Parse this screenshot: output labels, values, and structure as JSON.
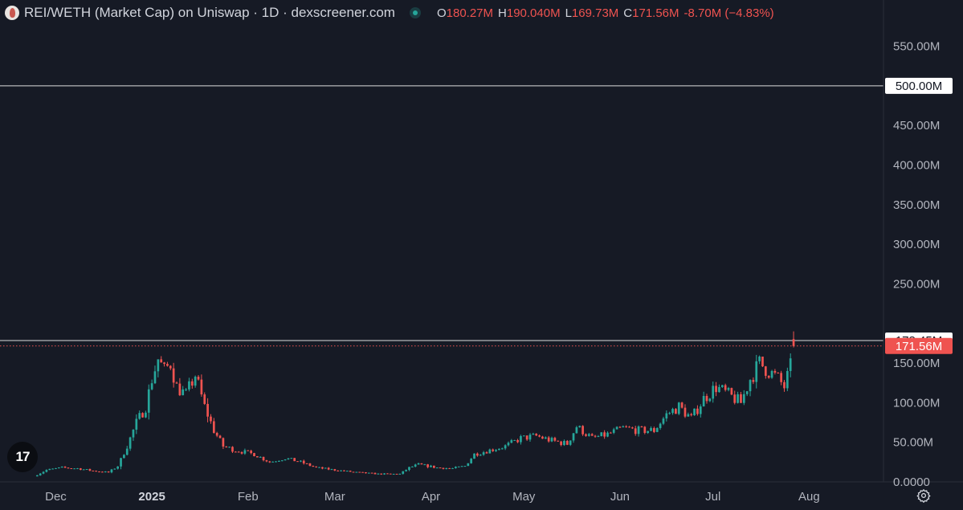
{
  "header": {
    "title": "REI/WETH (Market Cap) on Uniswap · 1D · dexscreener.com",
    "ohlc": [
      {
        "key": "O",
        "value": "180.27M"
      },
      {
        "key": "H",
        "value": "190.040M"
      },
      {
        "key": "L",
        "value": "169.73M"
      },
      {
        "key": "C",
        "value": "171.56M"
      },
      {
        "key": "",
        "value": "-8.70M (−4.83%)"
      }
    ]
  },
  "colors": {
    "up": "#26a69a",
    "down": "#ef5350",
    "background": "#161a25",
    "text": "#d1d4dc"
  },
  "icons": {
    "tv_logo": "tradingview-logo-icon",
    "settings": "gear-icon",
    "live": "live-status-dot-icon"
  },
  "tv_logo_text": "17",
  "chart_data": {
    "type": "candlestick",
    "title": "REI/WETH (Market Cap) on Uniswap · 1D · dexscreener.com",
    "unit": "USD",
    "y_range": [
      0,
      580000000
    ],
    "y_ticks": [
      {
        "value": 0,
        "label": "0.0000"
      },
      {
        "value": 50000000,
        "label": "50.00M"
      },
      {
        "value": 100000000,
        "label": "100.00M"
      },
      {
        "value": 150000000,
        "label": "150.00M"
      },
      {
        "value": 250000000,
        "label": "250.00M"
      },
      {
        "value": 300000000,
        "label": "300.00M"
      },
      {
        "value": 350000000,
        "label": "350.00M"
      },
      {
        "value": 400000000,
        "label": "400.00M"
      },
      {
        "value": 450000000,
        "label": "450.00M"
      },
      {
        "value": 550000000,
        "label": "550.00M"
      }
    ],
    "x_ticks": [
      {
        "date": "2024-12-01",
        "label": "Dec",
        "bold": false
      },
      {
        "date": "2025-01-01",
        "label": "2025",
        "bold": true
      },
      {
        "date": "2025-02-01",
        "label": "Feb",
        "bold": false
      },
      {
        "date": "2025-03-01",
        "label": "Mar",
        "bold": false
      },
      {
        "date": "2025-04-01",
        "label": "Apr",
        "bold": false
      },
      {
        "date": "2025-05-01",
        "label": "May",
        "bold": false
      },
      {
        "date": "2025-06-01",
        "label": "Jun",
        "bold": false
      },
      {
        "date": "2025-07-01",
        "label": "Jul",
        "bold": false
      },
      {
        "date": "2025-08-01",
        "label": "Aug",
        "bold": false
      }
    ],
    "x_range": [
      "2024-11-13",
      "2025-08-25"
    ],
    "horizontal_lines": [
      {
        "value": 500000000,
        "label": "500.00M",
        "style": "solid",
        "color": "#ffffff"
      },
      {
        "value": 178450000,
        "label": "178.45M",
        "style": "solid",
        "color": "#ffffff"
      },
      {
        "value": 171560000,
        "label": "171.56M",
        "style": "dotted",
        "color": "#ef5350"
      }
    ],
    "last_candle": {
      "open": 180270000,
      "high": 190040000,
      "low": 169730000,
      "close": 171560000,
      "change": -8700000,
      "change_pct": -4.83
    },
    "close_path": [
      [
        "2024-11-24",
        7000000
      ],
      [
        "2024-11-28",
        15000000
      ],
      [
        "2024-12-03",
        18000000
      ],
      [
        "2024-12-08",
        17000000
      ],
      [
        "2024-12-13",
        14000000
      ],
      [
        "2024-12-18",
        12000000
      ],
      [
        "2024-12-21",
        20000000
      ],
      [
        "2024-12-24",
        45000000
      ],
      [
        "2024-12-27",
        75000000
      ],
      [
        "2024-12-30",
        95000000
      ],
      [
        "2025-01-01",
        130000000
      ],
      [
        "2025-01-03",
        155000000
      ],
      [
        "2025-01-05",
        140000000
      ],
      [
        "2025-01-07",
        150000000
      ],
      [
        "2025-01-09",
        120000000
      ],
      [
        "2025-01-12",
        110000000
      ],
      [
        "2025-01-15",
        135000000
      ],
      [
        "2025-01-18",
        95000000
      ],
      [
        "2025-01-21",
        65000000
      ],
      [
        "2025-01-24",
        45000000
      ],
      [
        "2025-01-28",
        40000000
      ],
      [
        "2025-02-03",
        35000000
      ],
      [
        "2025-02-08",
        25000000
      ],
      [
        "2025-02-13",
        30000000
      ],
      [
        "2025-02-18",
        25000000
      ],
      [
        "2025-02-23",
        18000000
      ],
      [
        "2025-03-01",
        15000000
      ],
      [
        "2025-03-08",
        12000000
      ],
      [
        "2025-03-15",
        10000000
      ],
      [
        "2025-03-22",
        10000000
      ],
      [
        "2025-03-25",
        18000000
      ],
      [
        "2025-03-28",
        22000000
      ],
      [
        "2025-04-03",
        18000000
      ],
      [
        "2025-04-08",
        17000000
      ],
      [
        "2025-04-12",
        20000000
      ],
      [
        "2025-04-15",
        35000000
      ],
      [
        "2025-04-20",
        40000000
      ],
      [
        "2025-04-25",
        45000000
      ],
      [
        "2025-04-30",
        55000000
      ],
      [
        "2025-05-05",
        58000000
      ],
      [
        "2025-05-10",
        52000000
      ],
      [
        "2025-05-15",
        48000000
      ],
      [
        "2025-05-18",
        70000000
      ],
      [
        "2025-05-23",
        55000000
      ],
      [
        "2025-05-28",
        60000000
      ],
      [
        "2025-06-02",
        68000000
      ],
      [
        "2025-06-07",
        65000000
      ],
      [
        "2025-06-12",
        65000000
      ],
      [
        "2025-06-16",
        85000000
      ],
      [
        "2025-06-20",
        95000000
      ],
      [
        "2025-06-24",
        80000000
      ],
      [
        "2025-06-28",
        105000000
      ],
      [
        "2025-07-02",
        120000000
      ],
      [
        "2025-07-06",
        110000000
      ],
      [
        "2025-07-10",
        100000000
      ],
      [
        "2025-07-13",
        130000000
      ],
      [
        "2025-07-16",
        150000000
      ],
      [
        "2025-07-19",
        140000000
      ],
      [
        "2025-07-22",
        130000000
      ],
      [
        "2025-07-24",
        120000000
      ],
      [
        "2025-07-26",
        145000000
      ],
      [
        "2025-07-27",
        180270000
      ]
    ],
    "grid": false,
    "legend": "none"
  }
}
